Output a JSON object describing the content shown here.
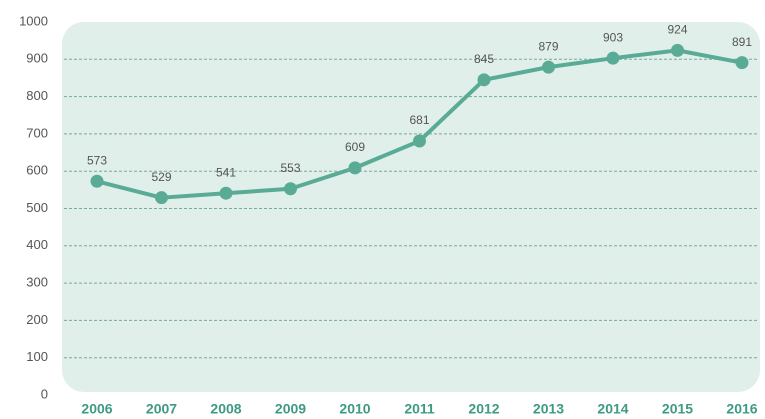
{
  "chart_data": {
    "type": "line",
    "categories": [
      "2006",
      "2007",
      "2008",
      "2009",
      "2010",
      "2011",
      "2012",
      "2013",
      "2014",
      "2015",
      "2016"
    ],
    "values": [
      573,
      529,
      541,
      553,
      609,
      681,
      845,
      879,
      903,
      924,
      891
    ],
    "color": "#5aab95",
    "ylim": [
      0,
      1000
    ],
    "yticks": [
      0,
      100,
      200,
      300,
      400,
      500,
      600,
      700,
      800,
      900,
      1000
    ],
    "grid": true,
    "data_labels": true
  }
}
